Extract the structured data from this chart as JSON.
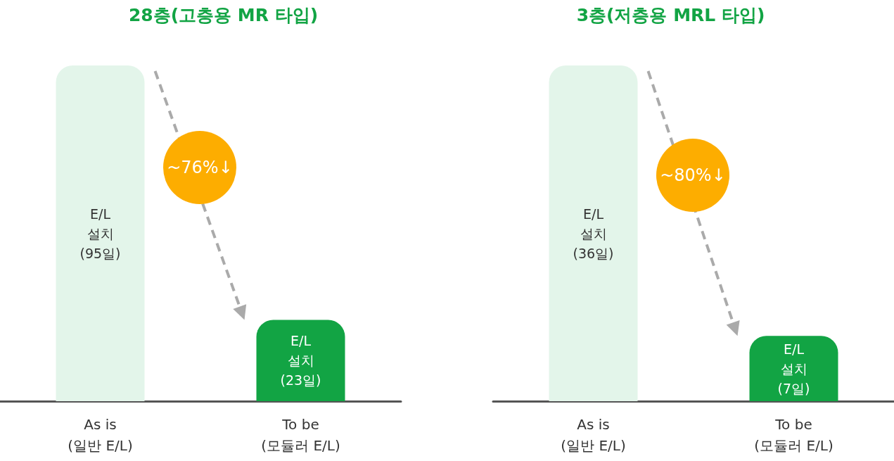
{
  "chart_data": [
    {
      "type": "bar",
      "title": "28층(고층용 MR 타입)",
      "categories": [
        "As is\n(일반 E/L)",
        "To be\n(모듈러 E/L)"
      ],
      "values": [
        95,
        23
      ],
      "colors": [
        "#e3f5ea",
        "#12a444"
      ],
      "value_labels": [
        "E/L\n설치\n(95일)",
        "E/L\n설치\n(23일)"
      ],
      "annotations": [
        "~76%↓"
      ]
    },
    {
      "type": "bar",
      "title": "3층(저층용 MRL 타입)",
      "categories": [
        "As is\n(일반 E/L)",
        "To be\n(모듈러 E/L)"
      ],
      "values": [
        36,
        7
      ],
      "colors": [
        "#e3f5ea",
        "#12a444"
      ],
      "value_labels": [
        "E/L\n설치\n(36일)",
        "E/L\n설치\n(7일)"
      ],
      "annotations": [
        "~80%↓"
      ]
    }
  ]
}
